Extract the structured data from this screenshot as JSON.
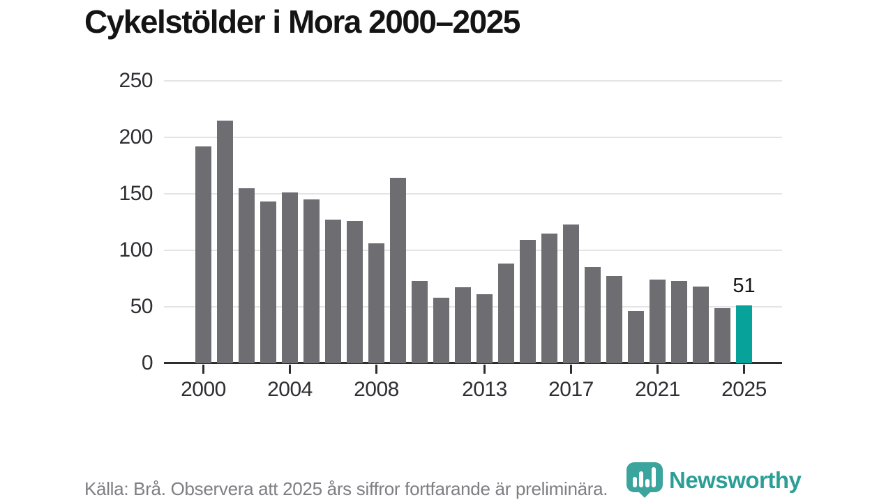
{
  "chart_data": {
    "type": "bar",
    "title": "Cykelstölder i Mora 2000–2025",
    "x": [
      2000,
      2001,
      2002,
      2003,
      2004,
      2005,
      2006,
      2007,
      2008,
      2009,
      2010,
      2011,
      2012,
      2013,
      2014,
      2015,
      2016,
      2017,
      2018,
      2019,
      2020,
      2021,
      2022,
      2023,
      2024,
      2025
    ],
    "values": [
      192,
      215,
      155,
      143,
      151,
      145,
      127,
      126,
      106,
      164,
      73,
      58,
      67,
      61,
      88,
      109,
      115,
      123,
      85,
      77,
      46,
      74,
      73,
      68,
      49,
      51
    ],
    "highlight_year": 2025,
    "data_label": {
      "year": 2025,
      "text": "51"
    },
    "xticks": [
      2000,
      2004,
      2008,
      2013,
      2017,
      2021,
      2025
    ],
    "yticks": [
      0,
      50,
      100,
      150,
      200,
      250
    ],
    "ylim": [
      0,
      250
    ],
    "grid": "horizontal",
    "legend": "none",
    "xlabel": "",
    "ylabel": ""
  },
  "footer": {
    "source_note": "Källa: Brå. Observera att 2025 års siffror fortfarande är preliminära."
  },
  "branding": {
    "logo_text": "Newsworthy",
    "logo_icon": "newsworthy-pin-barchart-icon"
  },
  "colors": {
    "bar_default": "#6D6D72",
    "bar_highlight": "#07A299",
    "logo_teal": "#3BA49D",
    "logo_text_teal": "#2B9E97",
    "grid_line": "#E4E4E6",
    "axis_line": "#2D2D2D",
    "title_text": "#141414",
    "axis_text": "#2E2E33",
    "footer_text": "#7E7E83",
    "value_label_text": "#141414"
  }
}
